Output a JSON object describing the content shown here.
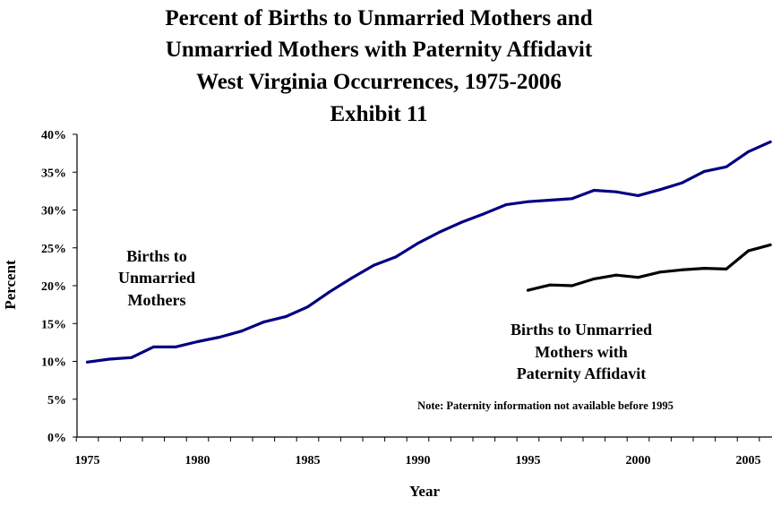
{
  "chart_data": {
    "type": "line",
    "title_lines": [
      "Percent of Births to Unmarried Mothers and",
      "Unmarried Mothers with Paternity Affidavit",
      "West Virginia Occurrences, 1975-2006",
      "Exhibit 11"
    ],
    "xlabel": "Year",
    "ylabel": "Percent",
    "xlim": [
      1975,
      2006
    ],
    "ylim": [
      0,
      40
    ],
    "x_ticks": [
      1975,
      1980,
      1985,
      1990,
      1995,
      2000,
      2005
    ],
    "y_ticks": [
      "0%",
      "5%",
      "10%",
      "15%",
      "20%",
      "25%",
      "30%",
      "35%",
      "40%"
    ],
    "y_tick_values": [
      0,
      5,
      10,
      15,
      20,
      25,
      30,
      35,
      40
    ],
    "grid": false,
    "legend": "none",
    "series": [
      {
        "label_lines": [
          "Births to",
          "Unmarried",
          "Mothers"
        ],
        "color": "#000080",
        "x": [
          1975,
          1976,
          1977,
          1978,
          1979,
          1980,
          1981,
          1982,
          1983,
          1984,
          1985,
          1986,
          1987,
          1988,
          1989,
          1990,
          1991,
          1992,
          1993,
          1994,
          1995,
          1996,
          1997,
          1998,
          1999,
          2000,
          2001,
          2002,
          2003,
          2004,
          2005,
          2006
        ],
        "values": [
          9.9,
          10.3,
          10.5,
          11.9,
          11.9,
          12.6,
          13.2,
          14.0,
          15.2,
          15.9,
          17.2,
          19.2,
          21.0,
          22.7,
          23.8,
          25.6,
          27.1,
          28.4,
          29.5,
          30.7,
          31.1,
          31.3,
          31.5,
          32.6,
          32.4,
          31.9,
          32.7,
          33.6,
          35.1,
          35.7,
          37.7,
          39.0
        ]
      },
      {
        "label_lines": [
          "Births to Unmarried",
          "Mothers with",
          "Paternity Affidavit"
        ],
        "color": "#000000",
        "x": [
          1995,
          1996,
          1997,
          1998,
          1999,
          2000,
          2001,
          2002,
          2003,
          2004,
          2005,
          2006
        ],
        "values": [
          19.4,
          20.1,
          20.0,
          20.9,
          21.4,
          21.1,
          21.8,
          22.1,
          22.3,
          22.2,
          24.6,
          25.4
        ]
      }
    ],
    "annotations": [
      "Note:  Paternity information not available before 1995"
    ]
  }
}
